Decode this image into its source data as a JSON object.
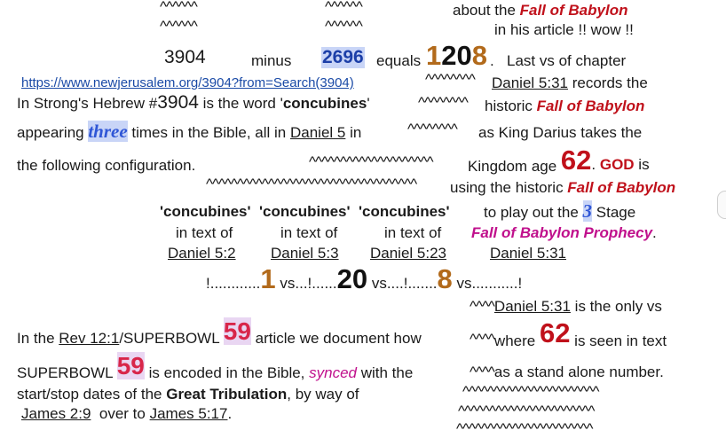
{
  "lines": {
    "l1_car_a": "^^^^^^",
    "l1_car_b": "^^^^^^",
    "l1_about": "about the ",
    "l1_fob": "Fall of Babylon",
    "l2_car_a": "^^^^^^",
    "l2_car_b": "^^^^^^",
    "l2_text": "in his article !! wow !!",
    "l3_3904": "3904",
    "l3_minus": "minus",
    "l3_2696": "2696",
    "l3_equals": "equals",
    "l3_1": "1",
    "l3_20": "20",
    "l3_8": "8",
    "l3_dot": ".",
    "l3_last": "Last vs of chapter",
    "l4_link": "https://www.newjerusalem.org/3904?from=Search(3904)",
    "l4_car": "^^^^^^^^",
    "l4_dan": "Daniel 5:31",
    "l4_records": " records the",
    "l5_strongs": "In Strong's Hebrew #",
    "l5_3904": "3904",
    "l5_isword": " is the word '",
    "l5_conc": "concubines",
    "l5_close": "'",
    "l5_car": "^^^^^^^^",
    "l5_historic": " historic ",
    "l5_fob": "Fall of Babylon",
    "l6_appearing": "appearing ",
    "l6_three": "three",
    "l6_times": " times in the Bible, all in ",
    "l6_dan5": "Daniel 5",
    "l6_in": " in",
    "l6_car": "^^^^^^^^",
    "l6_as": "as King Darius takes the",
    "l7_following": "the following configuration.",
    "l7_car": "^^^^^^^^^^^^^^^^^^^^",
    "l7_kingdom": "Kingdom age ",
    "l7_62": "62",
    "l7_dot": ". ",
    "l7_god": "GOD",
    "l7_is": " is",
    "l8_car": "^^^^^^^^^^^^^^^^^^^^^^^^^^^^^^^^^^",
    "l8_using": "using the historic ",
    "l8_fob": "Fall of Babylon",
    "l9_c1": "'concubines'",
    "l9_c2": "'concubines'",
    "l9_c3": "'concubines'",
    "l9_play": "to play out the ",
    "l9_3": "3",
    "l9_stage": " Stage",
    "l10_in1": "in text of",
    "l10_in2": "in text of",
    "l10_in3": "in text of",
    "l10_fob": "Fall of Babylon Prophecy",
    "l10_dot": ".",
    "l11_d1": "Daniel 5:2",
    "l11_d2": "Daniel 5:3",
    "l11_d3": "Daniel 5:23",
    "l11_d4": "Daniel 5:31",
    "l12_a": "!............",
    "l12_1": "1",
    "l12_b": " vs...!......",
    "l12_20": "20",
    "l12_c": " vs....!.......",
    "l12_8": "8",
    "l12_d": " vs...........!",
    "l13_car": "^^^^",
    "l13_dan": "Daniel 5:31",
    "l13_only": " is the only vs",
    "l14_inthe": "In the ",
    "l14_rev": "Rev 12:1",
    "l14_sb": "/SUPERBOWL ",
    "l14_59": "59",
    "l14_article": " article we document how",
    "l14_car": "^^^^",
    "l14_where": "where ",
    "l14_62": "62",
    "l14_seen": " is seen in text",
    "l15_sb": "SUPERBOWL ",
    "l15_59": "59",
    "l15_enc": " is encoded in the Bible, ",
    "l15_synced": "synced",
    "l15_with": " with the",
    "l15_car": "^^^^",
    "l15_stand": "as a stand alone number.",
    "l16_start": "start/stop dates of the ",
    "l16_gt": "Great Tribulation",
    "l16_way": ", by way of",
    "l16_car": "^^^^^^^^^^^^^^^^^^^^^^",
    "l17_j1": "James 2:9",
    "l17_over": "  over to ",
    "l17_j2": "James 5:17",
    "l17_dot": ".",
    "l17_car": "^^^^^^^^^^^^^^^^^^^^^^",
    "l18_car": "^^^^^^^^^^^^^^^^^^^^^^"
  },
  "colors": {
    "red": "#c0111b",
    "brown": "#b26a1b",
    "blue": "#1c3fa8",
    "pink": "#d8264a",
    "magenta": "#c0108c",
    "link": "#1a4aa6"
  }
}
